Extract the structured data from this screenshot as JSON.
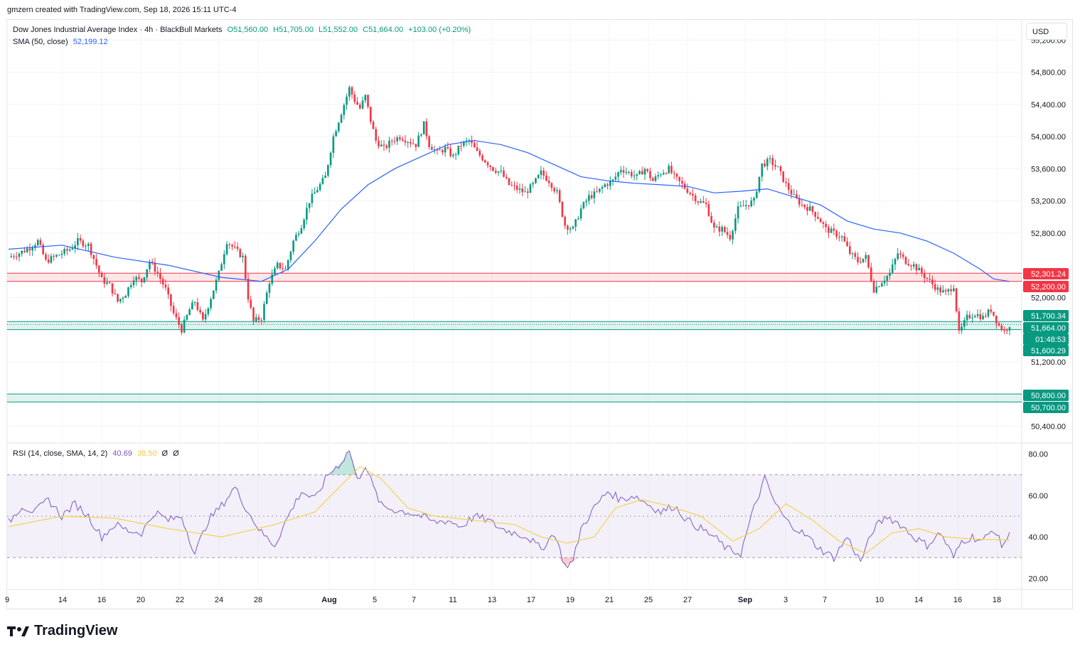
{
  "header": {
    "created_by": "gmzern created with TradingView.com, Sep 18, 2026 15:11 UTC-4"
  },
  "legend": {
    "symbol": "Dow Jones Industrial Average Index · 4h · BlackBull Markets",
    "open": "O51,560.00",
    "high": "H51,705.00",
    "low": "L51,552.00",
    "close": "C51,664.00",
    "change": "+103.00 (+0.20%)",
    "sma_label": "SMA (50, close)",
    "sma_value": "52,199.12",
    "rsi_label": "RSI (14, close, SMA, 14, 2)",
    "rsi_value": "40.69",
    "rsi_ma_value": "38.50",
    "rsi_extra1": "Ø",
    "rsi_extra2": "Ø"
  },
  "currency": "USD",
  "brand": "TradingView",
  "colors": {
    "up": "#089981",
    "down": "#f23645",
    "sma": "#2962ff",
    "rsi": "#7e57c2",
    "rsi_ma": "#f2d450",
    "resistance_zone": "#f23645",
    "support_zone": "#089981"
  },
  "chart_data": {
    "type": "candlestick",
    "timeframe": "4h",
    "price_axis": {
      "ticks": [
        "55,200.00",
        "54,800.00",
        "54,400.00",
        "54,000.00",
        "53,600.00",
        "53,200.00",
        "52,800.00",
        "52,000.00",
        "51,200.00",
        "50,400.00"
      ],
      "range": [
        50200,
        55450
      ]
    },
    "time_axis": {
      "labels": [
        "9",
        "14",
        "16",
        "20",
        "22",
        "24",
        "28",
        "Aug",
        "5",
        "7",
        "11",
        "13",
        "17",
        "19",
        "21",
        "25",
        "27",
        "Sep",
        "3",
        "7",
        "10",
        "14",
        "16",
        "18"
      ]
    },
    "price_labels": [
      {
        "text": "52,301.24",
        "kind": "zone-red"
      },
      {
        "text": "52,200.00",
        "kind": "zone-red"
      },
      {
        "text": "51,700.34",
        "kind": "zone-green"
      },
      {
        "text": "51,664.00",
        "kind": "current"
      },
      {
        "text": "01:48:53",
        "kind": "countdown"
      },
      {
        "text": "51,600.29",
        "kind": "zone-green"
      },
      {
        "text": "50,800.00",
        "kind": "zone-green"
      },
      {
        "text": "50,700.00",
        "kind": "zone-green"
      }
    ],
    "zones": [
      {
        "low": 52200,
        "high": 52301.24,
        "color": "red"
      },
      {
        "low": 51600.29,
        "high": 51700.34,
        "color": "green"
      },
      {
        "low": 50700,
        "high": 50800,
        "color": "green"
      }
    ],
    "close_path": [
      [
        0,
        52500
      ],
      [
        4,
        52550
      ],
      [
        8,
        52620
      ],
      [
        11,
        52700
      ],
      [
        14,
        52450
      ],
      [
        17,
        52500
      ],
      [
        20,
        52550
      ],
      [
        23,
        52600
      ],
      [
        26,
        52700
      ],
      [
        30,
        52650
      ],
      [
        33,
        52400
      ],
      [
        35,
        52220
      ],
      [
        38,
        52150
      ],
      [
        41,
        51950
      ],
      [
        44,
        52050
      ],
      [
        47,
        52250
      ],
      [
        50,
        52200
      ],
      [
        53,
        52450
      ],
      [
        56,
        52300
      ],
      [
        59,
        52100
      ],
      [
        62,
        51800
      ],
      [
        65,
        51600
      ],
      [
        68,
        51850
      ],
      [
        70,
        51950
      ],
      [
        73,
        51700
      ],
      [
        76,
        52000
      ],
      [
        79,
        52300
      ],
      [
        82,
        52700
      ],
      [
        85,
        52600
      ],
      [
        88,
        52500
      ],
      [
        90,
        52000
      ],
      [
        92,
        51700
      ],
      [
        95,
        51750
      ],
      [
        98,
        52200
      ],
      [
        101,
        52400
      ],
      [
        104,
        52350
      ],
      [
        107,
        52700
      ],
      [
        110,
        52900
      ],
      [
        113,
        53200
      ],
      [
        116,
        53350
      ],
      [
        119,
        53500
      ],
      [
        122,
        54000
      ],
      [
        125,
        54300
      ],
      [
        128,
        54600
      ],
      [
        130,
        54450
      ],
      [
        132,
        54350
      ],
      [
        134,
        54500
      ],
      [
        136,
        54200
      ],
      [
        138,
        53950
      ],
      [
        141,
        53850
      ],
      [
        144,
        53950
      ],
      [
        147,
        54000
      ],
      [
        150,
        53950
      ],
      [
        153,
        53900
      ],
      [
        156,
        54150
      ],
      [
        158,
        53900
      ],
      [
        161,
        53800
      ],
      [
        164,
        53850
      ],
      [
        167,
        53750
      ],
      [
        170,
        53900
      ],
      [
        173,
        53950
      ],
      [
        176,
        53800
      ],
      [
        179,
        53700
      ],
      [
        182,
        53600
      ],
      [
        185,
        53550
      ],
      [
        188,
        53400
      ],
      [
        191,
        53350
      ],
      [
        194,
        53300
      ],
      [
        197,
        53400
      ],
      [
        200,
        53550
      ],
      [
        203,
        53450
      ],
      [
        206,
        53300
      ],
      [
        209,
        52900
      ],
      [
        212,
        52850
      ],
      [
        215,
        53100
      ],
      [
        218,
        53250
      ],
      [
        221,
        53300
      ],
      [
        224,
        53400
      ],
      [
        227,
        53450
      ],
      [
        230,
        53600
      ],
      [
        233,
        53550
      ],
      [
        236,
        53500
      ],
      [
        239,
        53600
      ],
      [
        242,
        53450
      ],
      [
        245,
        53550
      ],
      [
        248,
        53600
      ],
      [
        250,
        53500
      ],
      [
        253,
        53400
      ],
      [
        256,
        53300
      ],
      [
        259,
        53200
      ],
      [
        262,
        53150
      ],
      [
        265,
        52850
      ],
      [
        268,
        52850
      ],
      [
        271,
        52750
      ],
      [
        274,
        53100
      ],
      [
        277,
        53150
      ],
      [
        280,
        53200
      ],
      [
        283,
        53650
      ],
      [
        286,
        53700
      ],
      [
        289,
        53600
      ],
      [
        292,
        53400
      ],
      [
        295,
        53250
      ],
      [
        298,
        53150
      ],
      [
        301,
        53100
      ],
      [
        304,
        53000
      ],
      [
        307,
        52850
      ],
      [
        310,
        52800
      ],
      [
        313,
        52750
      ],
      [
        316,
        52550
      ],
      [
        319,
        52450
      ],
      [
        322,
        52500
      ],
      [
        325,
        52100
      ],
      [
        328,
        52200
      ],
      [
        331,
        52300
      ],
      [
        334,
        52550
      ],
      [
        337,
        52450
      ],
      [
        340,
        52400
      ],
      [
        343,
        52300
      ],
      [
        346,
        52200
      ],
      [
        349,
        52100
      ],
      [
        352,
        52050
      ],
      [
        355,
        52150
      ],
      [
        357,
        51550
      ],
      [
        360,
        51750
      ],
      [
        363,
        51800
      ],
      [
        366,
        51750
      ],
      [
        369,
        51850
      ],
      [
        372,
        51650
      ],
      [
        374,
        51580
      ],
      [
        376,
        51664
      ]
    ],
    "close_path_note": "",
    "sma_path": [
      [
        0,
        52600
      ],
      [
        20,
        52650
      ],
      [
        40,
        52500
      ],
      [
        60,
        52400
      ],
      [
        80,
        52250
      ],
      [
        95,
        52200
      ],
      [
        105,
        52350
      ],
      [
        115,
        52700
      ],
      [
        125,
        53100
      ],
      [
        135,
        53400
      ],
      [
        145,
        53600
      ],
      [
        155,
        53750
      ],
      [
        165,
        53900
      ],
      [
        175,
        53950
      ],
      [
        185,
        53900
      ],
      [
        195,
        53800
      ],
      [
        205,
        53650
      ],
      [
        215,
        53500
      ],
      [
        225,
        53450
      ],
      [
        235,
        53420
      ],
      [
        245,
        53400
      ],
      [
        255,
        53380
      ],
      [
        265,
        53300
      ],
      [
        275,
        53320
      ],
      [
        285,
        53350
      ],
      [
        295,
        53250
      ],
      [
        305,
        53150
      ],
      [
        315,
        52950
      ],
      [
        325,
        52850
      ],
      [
        335,
        52800
      ],
      [
        345,
        52700
      ],
      [
        355,
        52550
      ],
      [
        365,
        52350
      ],
      [
        370,
        52230
      ],
      [
        376,
        52199
      ]
    ],
    "rsi": {
      "axis_ticks": [
        "80.00",
        "60.00",
        "40.00",
        "20.00"
      ],
      "range": [
        15,
        85
      ],
      "bands": [
        30,
        50,
        70
      ],
      "value": 40.69,
      "ma_value": 38.5,
      "rsi_path": [
        [
          0,
          47
        ],
        [
          5,
          55
        ],
        [
          10,
          52
        ],
        [
          15,
          58
        ],
        [
          20,
          50
        ],
        [
          25,
          56
        ],
        [
          30,
          50
        ],
        [
          35,
          40
        ],
        [
          40,
          46
        ],
        [
          45,
          43
        ],
        [
          50,
          42
        ],
        [
          55,
          52
        ],
        [
          60,
          48
        ],
        [
          65,
          50
        ],
        [
          70,
          32
        ],
        [
          75,
          48
        ],
        [
          80,
          55
        ],
        [
          85,
          64
        ],
        [
          90,
          52
        ],
        [
          95,
          42
        ],
        [
          100,
          36
        ],
        [
          105,
          50
        ],
        [
          110,
          62
        ],
        [
          115,
          58
        ],
        [
          120,
          70
        ],
        [
          125,
          76
        ],
        [
          128,
          82
        ],
        [
          131,
          67
        ],
        [
          134,
          75
        ],
        [
          137,
          64
        ],
        [
          140,
          55
        ],
        [
          145,
          53
        ],
        [
          150,
          52
        ],
        [
          155,
          50
        ],
        [
          160,
          47
        ],
        [
          165,
          48
        ],
        [
          170,
          45
        ],
        [
          175,
          50
        ],
        [
          180,
          48
        ],
        [
          185,
          44
        ],
        [
          190,
          42
        ],
        [
          195,
          40
        ],
        [
          200,
          34
        ],
        [
          205,
          42
        ],
        [
          209,
          26
        ],
        [
          212,
          28
        ],
        [
          215,
          44
        ],
        [
          220,
          54
        ],
        [
          225,
          62
        ],
        [
          230,
          58
        ],
        [
          235,
          60
        ],
        [
          240,
          56
        ],
        [
          245,
          52
        ],
        [
          250,
          55
        ],
        [
          255,
          48
        ],
        [
          260,
          44
        ],
        [
          265,
          40
        ],
        [
          270,
          34
        ],
        [
          275,
          32
        ],
        [
          280,
          54
        ],
        [
          284,
          68
        ],
        [
          288,
          56
        ],
        [
          292,
          48
        ],
        [
          296,
          44
        ],
        [
          300,
          40
        ],
        [
          305,
          34
        ],
        [
          310,
          30
        ],
        [
          315,
          40
        ],
        [
          320,
          28
        ],
        [
          325,
          44
        ],
        [
          330,
          50
        ],
        [
          335,
          46
        ],
        [
          340,
          40
        ],
        [
          345,
          36
        ],
        [
          350,
          42
        ],
        [
          355,
          30
        ],
        [
          358,
          38
        ],
        [
          362,
          40
        ],
        [
          366,
          38
        ],
        [
          370,
          44
        ],
        [
          373,
          36
        ],
        [
          376,
          40.69
        ]
      ],
      "ma_path": [
        [
          0,
          45
        ],
        [
          20,
          50
        ],
        [
          40,
          49
        ],
        [
          60,
          44
        ],
        [
          80,
          40
        ],
        [
          100,
          46
        ],
        [
          115,
          52
        ],
        [
          125,
          65
        ],
        [
          132,
          74
        ],
        [
          140,
          68
        ],
        [
          150,
          54
        ],
        [
          160,
          50
        ],
        [
          175,
          48
        ],
        [
          190,
          46
        ],
        [
          200,
          40
        ],
        [
          210,
          37
        ],
        [
          220,
          40
        ],
        [
          228,
          54
        ],
        [
          238,
          58
        ],
        [
          248,
          55
        ],
        [
          260,
          50
        ],
        [
          272,
          38
        ],
        [
          282,
          44
        ],
        [
          292,
          56
        ],
        [
          302,
          48
        ],
        [
          312,
          38
        ],
        [
          322,
          32
        ],
        [
          332,
          42
        ],
        [
          342,
          44
        ],
        [
          352,
          40
        ],
        [
          362,
          39
        ],
        [
          376,
          38.5
        ]
      ]
    }
  }
}
